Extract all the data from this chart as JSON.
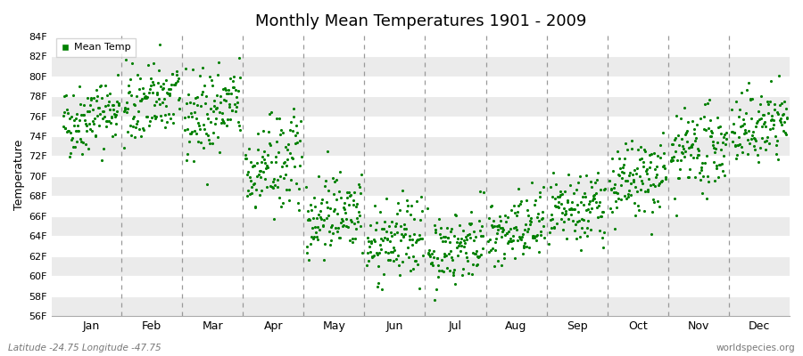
{
  "title": "Monthly Mean Temperatures 1901 - 2009",
  "ylabel": "Temperature",
  "xlabel": "",
  "bottom_left": "Latitude -24.75 Longitude -47.75",
  "bottom_right": "worldspecies.org",
  "legend_label": "Mean Temp",
  "dot_color": "#008000",
  "dot_size": 5,
  "ylim": [
    56,
    84
  ],
  "ytick_step": 2,
  "background_color": "#ffffff",
  "stripe_color": "#ebebeb",
  "n_years": 109,
  "monthly_means": [
    76.0,
    77.5,
    76.5,
    71.0,
    66.5,
    63.5,
    63.0,
    64.5,
    66.5,
    69.5,
    72.5,
    75.0
  ],
  "monthly_stds": [
    1.8,
    2.0,
    2.2,
    2.5,
    2.0,
    2.0,
    1.8,
    1.8,
    1.8,
    2.0,
    2.0,
    1.8
  ],
  "monthly_trends": [
    0.015,
    0.015,
    0.015,
    0.015,
    0.015,
    0.015,
    0.015,
    0.015,
    0.015,
    0.015,
    0.015,
    0.015
  ],
  "month_labels": [
    "Jan",
    "Feb",
    "Mar",
    "Apr",
    "May",
    "Jun",
    "Jul",
    "Aug",
    "Sep",
    "Oct",
    "Nov",
    "Dec"
  ],
  "seed": 42
}
